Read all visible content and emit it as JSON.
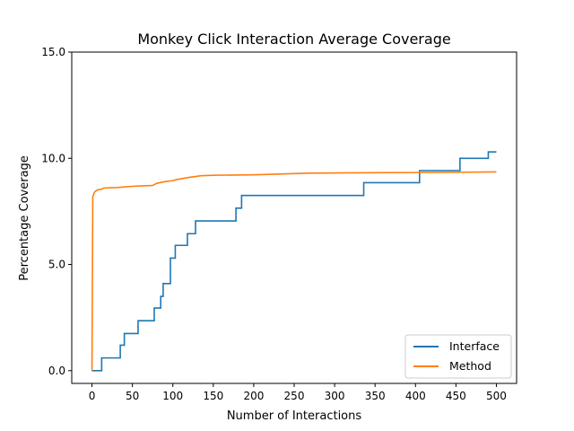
{
  "chart_data": {
    "type": "line",
    "title": "Monkey Click Interaction Average Coverage",
    "xlabel": "Number of Interactions",
    "ylabel": "Percentage Coverage",
    "xlim": [
      -25,
      525
    ],
    "ylim": [
      -0.6,
      15.0
    ],
    "x_ticks": [
      0,
      50,
      100,
      150,
      200,
      250,
      300,
      350,
      400,
      450,
      500
    ],
    "x_tick_labels": [
      "0",
      "50",
      "100",
      "150",
      "200",
      "250",
      "300",
      "350",
      "400",
      "450",
      "500"
    ],
    "y_ticks": [
      0.0,
      5.0,
      10.0,
      15.0
    ],
    "y_tick_labels": [
      "0.0",
      "5.0",
      "10.0",
      "15.0"
    ],
    "grid": false,
    "legend_position": "lower-right",
    "series": [
      {
        "name": "Interface",
        "color": "#1f77b4",
        "step": true,
        "points": [
          [
            0,
            0.0
          ],
          [
            12,
            0.0
          ],
          [
            12,
            0.6
          ],
          [
            35,
            0.6
          ],
          [
            35,
            1.2
          ],
          [
            40,
            1.2
          ],
          [
            40,
            1.75
          ],
          [
            57,
            1.75
          ],
          [
            57,
            2.35
          ],
          [
            77,
            2.35
          ],
          [
            77,
            2.95
          ],
          [
            85,
            2.95
          ],
          [
            85,
            3.5
          ],
          [
            88,
            3.5
          ],
          [
            88,
            4.1
          ],
          [
            97,
            4.1
          ],
          [
            97,
            5.3
          ],
          [
            103,
            5.3
          ],
          [
            103,
            5.9
          ],
          [
            118,
            5.9
          ],
          [
            118,
            6.45
          ],
          [
            128,
            6.45
          ],
          [
            128,
            7.05
          ],
          [
            178,
            7.05
          ],
          [
            178,
            7.65
          ],
          [
            185,
            7.65
          ],
          [
            185,
            8.25
          ],
          [
            336,
            8.25
          ],
          [
            336,
            8.85
          ],
          [
            405,
            8.85
          ],
          [
            405,
            9.42
          ],
          [
            455,
            9.42
          ],
          [
            455,
            10.0
          ],
          [
            490,
            10.0
          ],
          [
            490,
            10.3
          ],
          [
            500,
            10.3
          ]
        ]
      },
      {
        "name": "Method",
        "color": "#ff7f0e",
        "step": false,
        "points": [
          [
            0,
            0.0
          ],
          [
            1,
            8.2
          ],
          [
            3,
            8.4
          ],
          [
            6,
            8.5
          ],
          [
            12,
            8.55
          ],
          [
            15,
            8.6
          ],
          [
            30,
            8.62
          ],
          [
            40,
            8.65
          ],
          [
            50,
            8.68
          ],
          [
            60,
            8.7
          ],
          [
            75,
            8.72
          ],
          [
            80,
            8.82
          ],
          [
            90,
            8.9
          ],
          [
            100,
            8.95
          ],
          [
            105,
            9.0
          ],
          [
            120,
            9.1
          ],
          [
            135,
            9.18
          ],
          [
            150,
            9.2
          ],
          [
            200,
            9.22
          ],
          [
            250,
            9.28
          ],
          [
            270,
            9.3
          ],
          [
            350,
            9.32
          ],
          [
            400,
            9.33
          ],
          [
            450,
            9.34
          ],
          [
            500,
            9.36
          ]
        ]
      }
    ]
  }
}
